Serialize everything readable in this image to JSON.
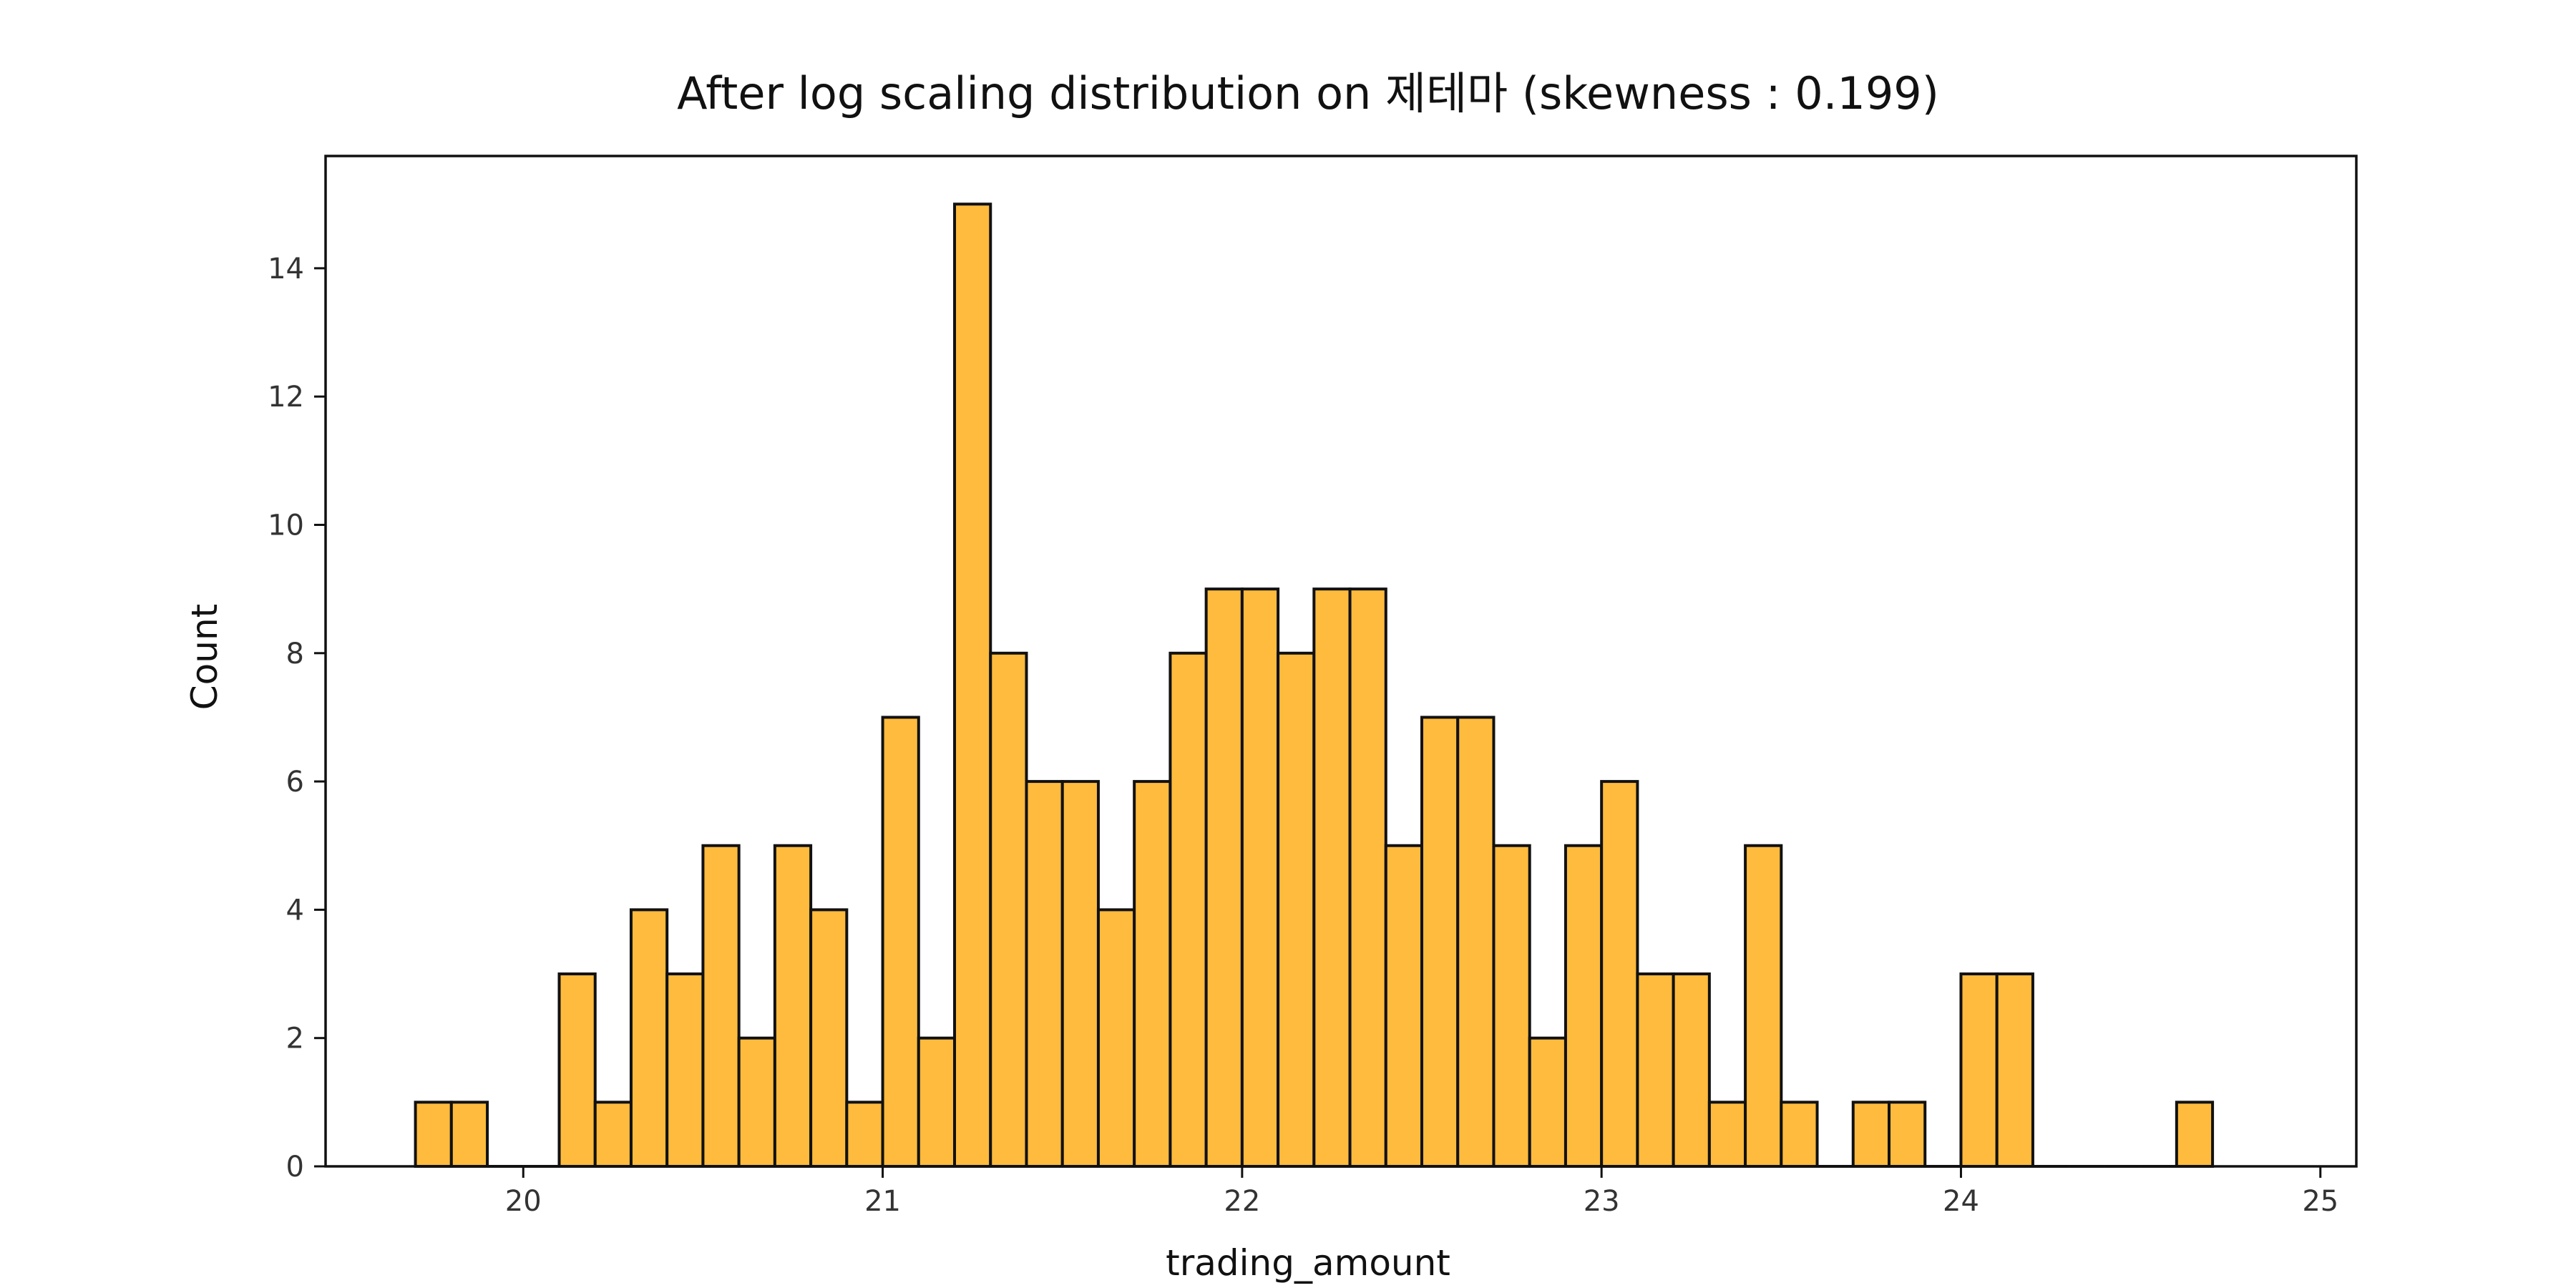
{
  "chart_data": {
    "type": "bar",
    "title": "After log scaling distribution on 제테마 (skewness : 0.199)",
    "xlabel": "trading_amount",
    "ylabel": "Count",
    "bar_color": "#FFBB3D",
    "edge_color": "#111111",
    "xlim": [
      19.45,
      25.1
    ],
    "ylim": [
      0,
      15.75
    ],
    "xticks": [
      20,
      21,
      22,
      23,
      24,
      25
    ],
    "yticks": [
      0,
      2,
      4,
      6,
      8,
      10,
      12,
      14
    ],
    "bin_start": 19.7,
    "bin_width": 0.1,
    "values": [
      1,
      1,
      0,
      0,
      3,
      1,
      4,
      3,
      5,
      2,
      5,
      4,
      1,
      7,
      2,
      15,
      8,
      6,
      6,
      4,
      6,
      8,
      9,
      9,
      8,
      9,
      9,
      5,
      7,
      7,
      5,
      2,
      5,
      6,
      3,
      3,
      1,
      5,
      1,
      0,
      1,
      1,
      0,
      3,
      3,
      0,
      0,
      0,
      0,
      1
    ],
    "grid": false,
    "legend": "none"
  }
}
